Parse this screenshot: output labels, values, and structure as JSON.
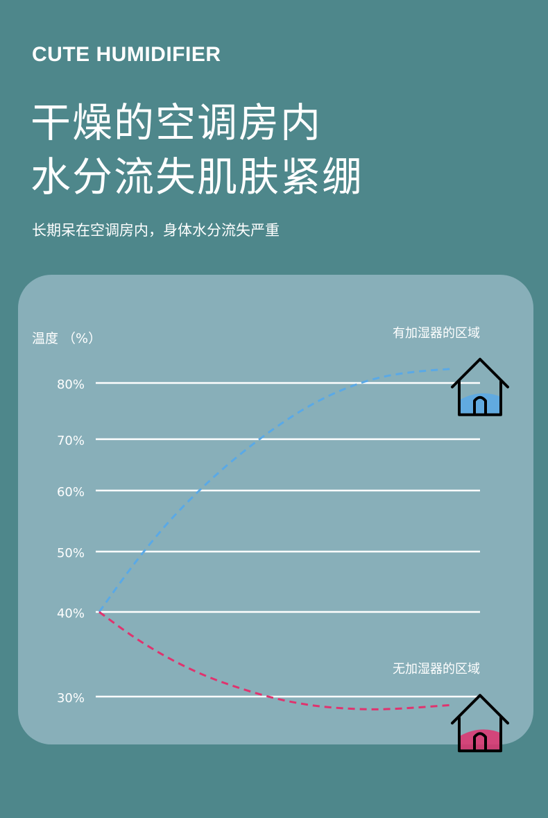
{
  "brand": "CUTE HUMIDIFIER",
  "headline": [
    "干燥的空调房内",
    "水分流失肌肤紧绷"
  ],
  "subtitle": "长期呆在空调房内，身体水分流失严重",
  "chart_data": {
    "type": "line",
    "ylabel": "温度 （%）",
    "yticks": [
      {
        "label": "80%",
        "value": 80
      },
      {
        "label": "70%",
        "value": 70
      },
      {
        "label": "60%",
        "value": 60
      },
      {
        "label": "50%",
        "value": 50
      },
      {
        "label": "40%",
        "value": 40
      },
      {
        "label": "30%",
        "value": 30
      }
    ],
    "grid": true,
    "series": [
      {
        "name": "有加湿器的区域",
        "color": "#5aa9e6",
        "style": "dashed",
        "icon": "house-icon",
        "points": [
          [
            0,
            40
          ],
          [
            0.1,
            48
          ],
          [
            0.2,
            55
          ],
          [
            0.3,
            61
          ],
          [
            0.4,
            67
          ],
          [
            0.5,
            72
          ],
          [
            0.6,
            76
          ],
          [
            0.7,
            79
          ],
          [
            0.8,
            81
          ],
          [
            0.9,
            82
          ],
          [
            1.0,
            82.5
          ]
        ]
      },
      {
        "name": "无加湿器的区域",
        "color": "#e0336e",
        "style": "dashed",
        "icon": "house-icon",
        "points": [
          [
            0,
            40
          ],
          [
            0.1,
            37
          ],
          [
            0.2,
            34.5
          ],
          [
            0.3,
            32.5
          ],
          [
            0.4,
            31
          ],
          [
            0.5,
            29.8
          ],
          [
            0.6,
            29
          ],
          [
            0.7,
            28.6
          ],
          [
            0.8,
            28.5
          ],
          [
            0.9,
            28.7
          ],
          [
            1.0,
            29
          ]
        ]
      }
    ]
  }
}
